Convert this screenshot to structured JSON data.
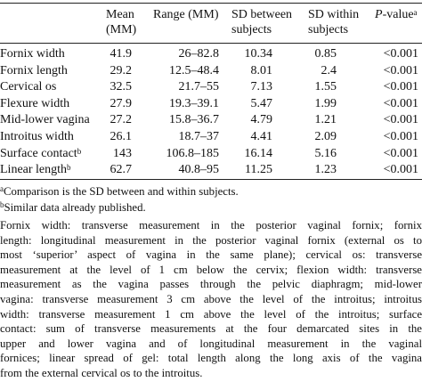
{
  "table": {
    "header": [
      {
        "lines": [
          "Mean",
          "(MM)"
        ]
      },
      {
        "lines": [
          "Range (MM)"
        ]
      },
      {
        "lines": [
          "SD between",
          "subjects"
        ]
      },
      {
        "lines": [
          "SD within",
          "subjects"
        ]
      },
      {
        "italic": "P",
        "rest": "-value",
        "note": "a"
      }
    ],
    "rows": [
      {
        "label": "Fornix width",
        "values": [
          "41.9",
          "26–82.8",
          "10.34",
          "0.85",
          "<0.001"
        ]
      },
      {
        "label": "Fornix length",
        "values": [
          "29.2",
          "12.5–48.4",
          "8.01",
          "2.4",
          "<0.001"
        ]
      },
      {
        "label": "Cervical os",
        "values": [
          "32.5",
          "21.7–55",
          "7.13",
          "1.55",
          "<0.001"
        ]
      },
      {
        "label": "Flexure width",
        "values": [
          "27.9",
          "19.3–39.1",
          "5.47",
          "1.99",
          "<0.001"
        ]
      },
      {
        "label": "Mid-lower vagina",
        "values": [
          "27.2",
          "15.8–36.7",
          "4.79",
          "1.21",
          "<0.001"
        ]
      },
      {
        "label": "Introitus width",
        "values": [
          "26.1",
          "18.7–37",
          "4.41",
          "2.09",
          "<0.001"
        ]
      },
      {
        "label": "Surface contact",
        "note": "b",
        "values": [
          "143",
          "106.8–185",
          "16.14",
          "5.16",
          "<0.001"
        ]
      },
      {
        "label": "Linear length",
        "note": "b",
        "values": [
          "62.7",
          "40.8–95",
          "11.25",
          "1.23",
          "<0.001"
        ]
      }
    ]
  },
  "footnotes": [
    {
      "mark": "a",
      "text": "Comparison is the SD between and within subjects."
    },
    {
      "mark": "b",
      "text": "Similar data already published."
    }
  ],
  "description": [
    "Fornix width: transverse measurement in the posterior vaginal fornix; fornix",
    "length: longitudinal measurement in the posterior vaginal fornix (external os to",
    "most ‘superior’ aspect of vagina in the same plane); cervical os: transverse",
    "measurement at the level of 1 cm below the cervix; flexion width: transverse",
    "measurement as the vagina passes through the pelvic diaphragm; mid-lower",
    "vagina: transverse measurement 3 cm above the level of the introitus; introitus",
    "width: transverse measurement 1 cm above the level of the introitus; surface",
    "contact: sum of transverse measurements at the four demarcated sites in the",
    "upper and lower vagina and of longitudinal measurement in the vaginal",
    "fornices; linear spread of gel: total length along the long axis of the vagina",
    "from the external cervical os to the introitus."
  ]
}
